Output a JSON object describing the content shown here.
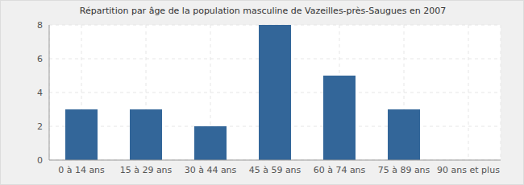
{
  "chart_data": {
    "type": "bar",
    "title": "Répartition par âge de la population masculine de Vazeilles-près-Saugues en 2007",
    "categories": [
      "0 à 14 ans",
      "15 à 29 ans",
      "30 à 44 ans",
      "45 à 59 ans",
      "60 à 74 ans",
      "75 à 89 ans",
      "90 ans et plus"
    ],
    "values": [
      3,
      3,
      2,
      8,
      5,
      3,
      0
    ],
    "color": "#336699",
    "ylim": [
      0,
      8
    ],
    "yticks": [
      0,
      2,
      4,
      6,
      8
    ],
    "grid": true
  }
}
